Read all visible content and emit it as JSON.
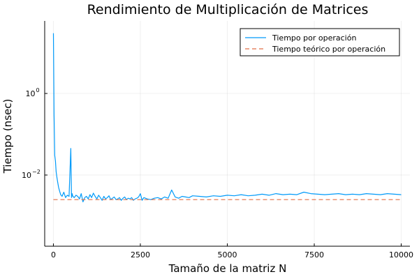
{
  "chart_data": {
    "type": "line",
    "title": "Rendimiento de Multiplicación de Matrices",
    "xlabel": "Tamaño de la matriz N",
    "ylabel": "Tiempo (nsec)",
    "xlim": [
      -250,
      10250
    ],
    "ylim": [
      0.00018,
      60
    ],
    "yscale": "log10",
    "grid": true,
    "legend_position": "top-right",
    "x_ticks": [
      {
        "value": 0,
        "label": "0"
      },
      {
        "value": 2500,
        "label": "2500"
      },
      {
        "value": 5000,
        "label": "5000"
      },
      {
        "value": 7500,
        "label": "7500"
      },
      {
        "value": 10000,
        "label": "10000"
      }
    ],
    "y_ticks": [
      {
        "value": 1,
        "base": "10",
        "exp": "0"
      },
      {
        "value": 0.01,
        "base": "10",
        "exp": "−2"
      }
    ],
    "series": [
      {
        "name": "Tiempo por operación",
        "color": "#009AF9",
        "style": "solid",
        "x": [
          1,
          20,
          40,
          60,
          80,
          100,
          120,
          150,
          180,
          210,
          250,
          300,
          350,
          400,
          450,
          500,
          520,
          540,
          560,
          600,
          650,
          700,
          750,
          800,
          850,
          900,
          950,
          1000,
          1050,
          1100,
          1150,
          1200,
          1250,
          1300,
          1350,
          1400,
          1450,
          1500,
          1550,
          1600,
          1650,
          1700,
          1750,
          1800,
          1850,
          1900,
          1950,
          2000,
          2050,
          2100,
          2150,
          2200,
          2250,
          2300,
          2350,
          2400,
          2450,
          2500,
          2550,
          2600,
          2700,
          2800,
          2900,
          3000,
          3100,
          3200,
          3300,
          3400,
          3500,
          3600,
          3700,
          3800,
          3900,
          4000,
          4200,
          4400,
          4600,
          4800,
          5000,
          5200,
          5400,
          5600,
          5800,
          6000,
          6200,
          6400,
          6600,
          6800,
          7000,
          7200,
          7400,
          7600,
          7800,
          8000,
          8200,
          8400,
          8600,
          8800,
          9000,
          9200,
          9400,
          9600,
          9800,
          10000
        ],
        "y": [
          30,
          0.3,
          0.03,
          0.022,
          0.012,
          0.009,
          0.007,
          0.005,
          0.004,
          0.0033,
          0.003,
          0.0038,
          0.0028,
          0.0032,
          0.003,
          0.045,
          0.0028,
          0.0035,
          0.003,
          0.0028,
          0.0032,
          0.003,
          0.0026,
          0.0035,
          0.0022,
          0.0028,
          0.003,
          0.0026,
          0.0033,
          0.0028,
          0.0036,
          0.003,
          0.0026,
          0.0032,
          0.0028,
          0.0024,
          0.003,
          0.0026,
          0.0028,
          0.0031,
          0.0025,
          0.0027,
          0.0029,
          0.0025,
          0.0026,
          0.0028,
          0.0024,
          0.0027,
          0.0029,
          0.0025,
          0.0027,
          0.0026,
          0.0028,
          0.0024,
          0.0026,
          0.0027,
          0.0029,
          0.0035,
          0.0024,
          0.0028,
          0.0026,
          0.0025,
          0.0027,
          0.0028,
          0.0026,
          0.0029,
          0.0027,
          0.0043,
          0.0029,
          0.0027,
          0.003,
          0.0029,
          0.0028,
          0.0031,
          0.003,
          0.0029,
          0.0031,
          0.003,
          0.0032,
          0.0031,
          0.0033,
          0.0031,
          0.0032,
          0.0034,
          0.0032,
          0.0035,
          0.0033,
          0.0034,
          0.0033,
          0.0038,
          0.0035,
          0.0034,
          0.0033,
          0.0034,
          0.0035,
          0.0033,
          0.0034,
          0.0033,
          0.0035,
          0.0034,
          0.0033,
          0.0035,
          0.0034,
          0.0033
        ]
      },
      {
        "name": "Tiempo teórico por operación",
        "color": "#E26F46",
        "style": "dashed",
        "x": [
          0,
          10000
        ],
        "y": [
          0.0025,
          0.0025
        ]
      }
    ]
  }
}
